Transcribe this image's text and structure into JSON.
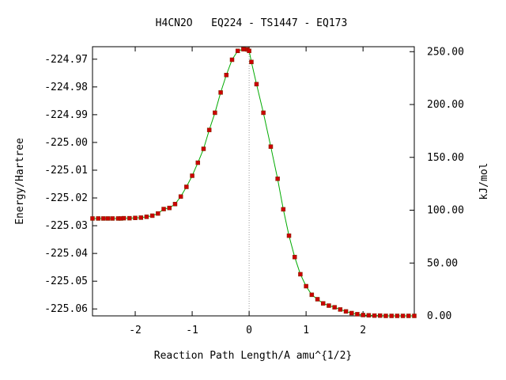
{
  "chart_data": {
    "type": "line",
    "title": "H4CN2O   EQ224 - TS1447 - EQ173",
    "xlabel": "Reaction Path Length/A amu^{1/2}",
    "ylabel": "Energy/Hartree",
    "y2label": "kJ/mol",
    "xlim": [
      -2.75,
      2.9
    ],
    "ylim": [
      -225.0625,
      -224.9655
    ],
    "y2lim": [
      0,
      254.7
    ],
    "xticks": [
      -2,
      -1,
      0,
      1,
      2
    ],
    "xtick_labels": [
      "-2",
      "-1",
      "0",
      "1",
      "2"
    ],
    "yticks": [
      -224.97,
      -224.98,
      -224.99,
      -225.0,
      -225.01,
      -225.02,
      -225.03,
      -225.04,
      -225.05,
      -225.06
    ],
    "ytick_labels": [
      "-224.97",
      "-224.98",
      "-224.99",
      "-225.00",
      "-225.01",
      "-225.02",
      "-225.03",
      "-225.04",
      "-225.05",
      "-225.06"
    ],
    "y2ticks": [
      250,
      200,
      150,
      100,
      50,
      0
    ],
    "y2tick_labels": [
      "250.00",
      "200.00",
      "150.00",
      "100.00",
      "50.00",
      "0.00"
    ],
    "ts_marker_x": 0,
    "line_color": "#00aa00",
    "marker_color": "#cc0000",
    "series": [
      {
        "x": [
          -2.75,
          -2.65,
          -2.56,
          -2.48,
          -2.4,
          -2.3,
          -2.25,
          -2.2,
          -2.1,
          -2.0,
          -1.9,
          -1.8,
          -1.7,
          -1.6,
          -1.5,
          -1.4,
          -1.3,
          -1.2,
          -1.1,
          -1.0,
          -0.9,
          -0.8,
          -0.7,
          -0.6,
          -0.5,
          -0.4,
          -0.3,
          -0.2,
          -0.1,
          -0.03,
          0.0,
          0.04,
          0.13,
          0.25,
          0.38,
          0.5,
          0.6,
          0.7,
          0.8,
          0.9,
          1.0,
          1.1,
          1.2,
          1.3,
          1.4,
          1.5,
          1.6,
          1.7,
          1.8,
          1.9,
          2.0,
          2.1,
          2.2,
          2.3,
          2.4,
          2.5,
          2.6,
          2.7,
          2.8,
          2.9
        ],
        "y": [
          -225.0274,
          -225.0274,
          -225.0274,
          -225.0274,
          -225.0274,
          -225.0274,
          -225.0274,
          -225.0273,
          -225.0273,
          -225.0272,
          -225.0271,
          -225.0268,
          -225.0264,
          -225.0256,
          -225.024,
          -225.0236,
          -225.0222,
          -225.0195,
          -225.016,
          -225.012,
          -225.0073,
          -225.0023,
          -224.9955,
          -224.9893,
          -224.982,
          -224.9757,
          -224.9702,
          -224.967,
          -224.9664,
          -224.9665,
          -224.967,
          -224.971,
          -224.979,
          -224.9893,
          -225.0015,
          -225.0131,
          -225.0241,
          -225.0336,
          -225.0413,
          -225.0475,
          -225.0518,
          -225.0549,
          -225.0565,
          -225.058,
          -225.0588,
          -225.0594,
          -225.0602,
          -225.0609,
          -225.0615,
          -225.0619,
          -225.0622,
          -225.0623,
          -225.0624,
          -225.0624,
          -225.0625,
          -225.0625,
          -225.0625,
          -225.0625,
          -225.0625,
          -225.0625
        ]
      }
    ]
  }
}
